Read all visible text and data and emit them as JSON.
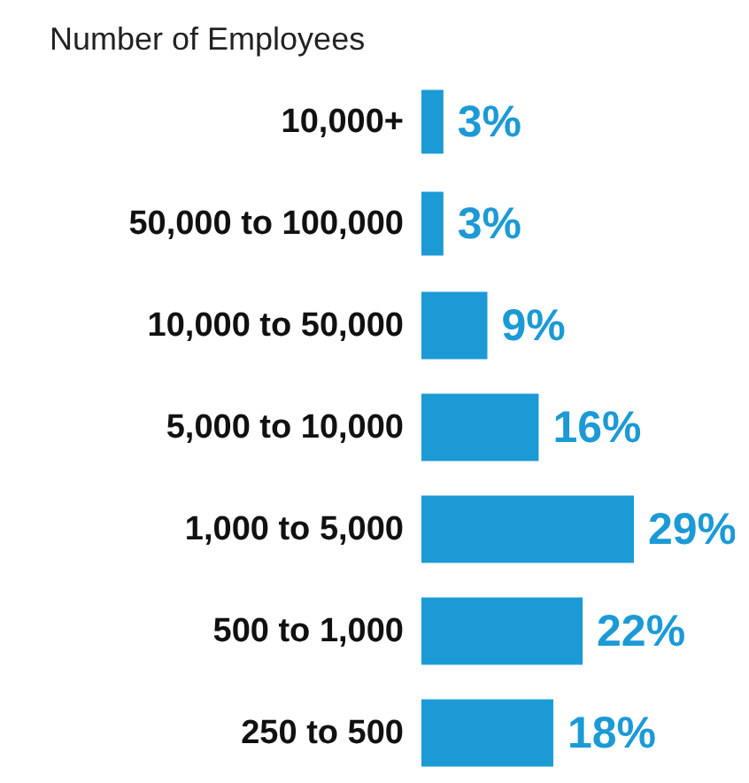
{
  "chart_data": {
    "type": "bar",
    "orientation": "horizontal",
    "title": "Number of Employees",
    "categories": [
      "10,000+",
      "50,000 to 100,000",
      "10,000 to 50,000",
      "5,000 to 10,000",
      "1,000 to 5,000",
      "500 to 1,000",
      "250 to 500"
    ],
    "values": [
      3,
      3,
      9,
      16,
      29,
      22,
      18
    ],
    "value_labels": [
      "3%",
      "3%",
      "9%",
      "16%",
      "29%",
      "22%",
      "18%"
    ],
    "color": "#1b9ad6"
  }
}
